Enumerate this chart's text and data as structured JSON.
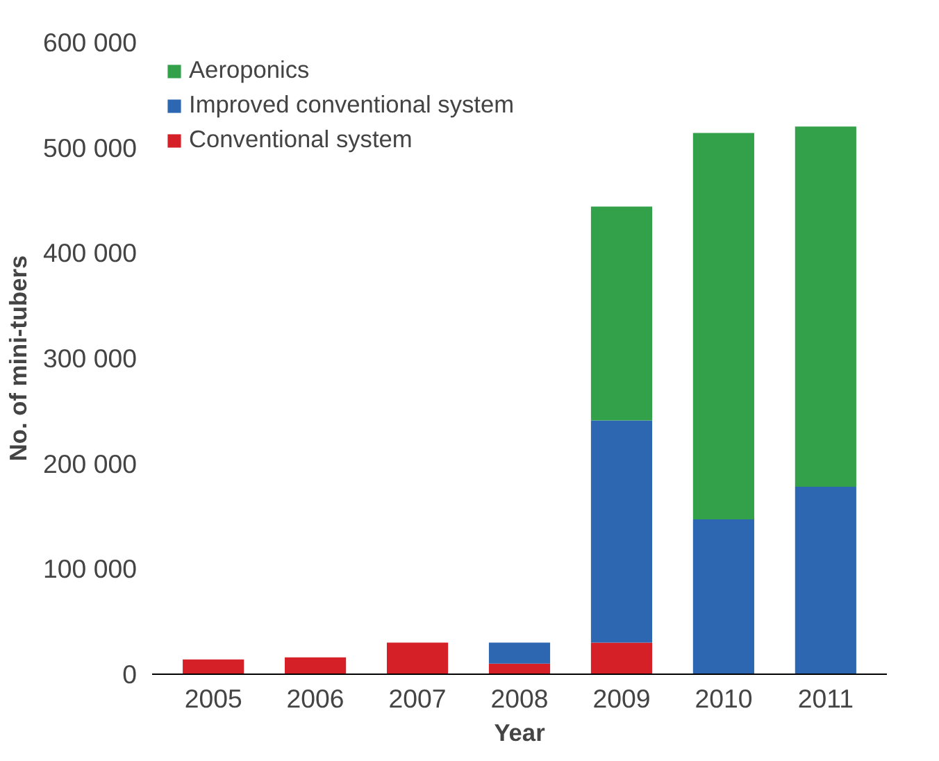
{
  "chart_data": {
    "type": "bar",
    "stacked": true,
    "xlabel": "Year",
    "ylabel": "No. of mini-tubers",
    "categories": [
      "2005",
      "2006",
      "2007",
      "2008",
      "2009",
      "2010",
      "2011"
    ],
    "series": [
      {
        "name": "Conventional system",
        "color": "#d62027",
        "values": [
          14000,
          16000,
          30000,
          10000,
          30000,
          0,
          0
        ]
      },
      {
        "name": "Improved conventional system",
        "color": "#2e67b1",
        "values": [
          0,
          0,
          0,
          20000,
          211000,
          147000,
          178000
        ]
      },
      {
        "name": "Aeroponics",
        "color": "#33a14a",
        "values": [
          0,
          0,
          0,
          0,
          203000,
          367000,
          342000
        ]
      }
    ],
    "ylim": [
      0,
      600000
    ],
    "yticks": [
      {
        "value": 0,
        "label": "0"
      },
      {
        "value": 100000,
        "label": "100 000"
      },
      {
        "value": 200000,
        "label": "200 000"
      },
      {
        "value": 300000,
        "label": "300 000"
      },
      {
        "value": 400000,
        "label": "400 000"
      },
      {
        "value": 500000,
        "label": "500 000"
      },
      {
        "value": 600000,
        "label": "600 000"
      }
    ],
    "grid": false,
    "legend": "top left"
  }
}
